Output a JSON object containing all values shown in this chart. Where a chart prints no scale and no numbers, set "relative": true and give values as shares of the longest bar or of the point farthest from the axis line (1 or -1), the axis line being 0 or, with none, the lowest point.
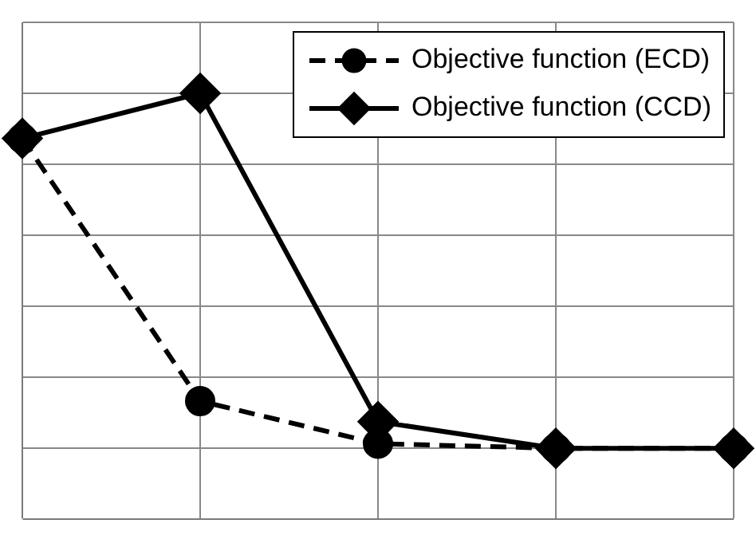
{
  "chart_data": {
    "type": "line",
    "relative": true,
    "categories": [
      null,
      null,
      null,
      null,
      null
    ],
    "series": [
      {
        "name": "Objective function (ECD)",
        "color": "#000000",
        "marker": "circle",
        "line_style": "dashed",
        "values": [
          0.873,
          0.133,
          0.013,
          0,
          0
        ]
      },
      {
        "name": "Objective function (CCD)",
        "color": "#000000",
        "marker": "diamond",
        "line_style": "solid",
        "values": [
          0.873,
          1,
          0.075,
          0,
          0
        ]
      }
    ],
    "grid": true,
    "legend": "top right"
  }
}
